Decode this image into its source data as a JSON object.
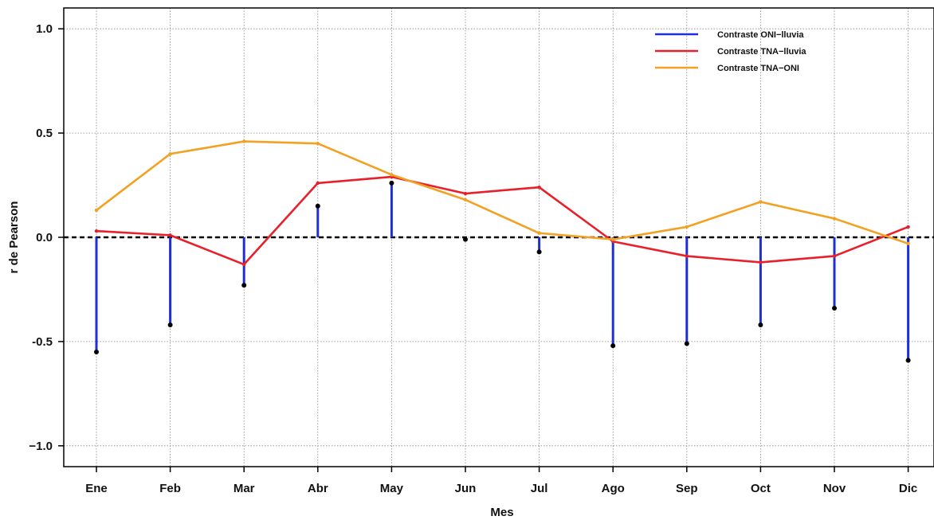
{
  "chart_data": {
    "type": "line",
    "title": "",
    "xlabel": "Mes",
    "ylabel": "r de Pearson",
    "categories": [
      "Ene",
      "Feb",
      "Mar",
      "Abr",
      "May",
      "Jun",
      "Jul",
      "Ago",
      "Sep",
      "Oct",
      "Nov",
      "Dic"
    ],
    "ylim": [
      -1.1,
      1.1
    ],
    "yticks": [
      -1.0,
      -0.5,
      0.0,
      0.5,
      1.0
    ],
    "ytick_labels": [
      "−1.0",
      "-0.5",
      "0.0",
      "0.5",
      "1.0"
    ],
    "grid": true,
    "reference_line": {
      "y": 0.0,
      "style": "dashed"
    },
    "legend_position": "top-right",
    "series": [
      {
        "name": "Contraste ONI−lluvia",
        "render": "stem",
        "color": "#1f2fd6",
        "values": [
          -0.55,
          -0.42,
          -0.23,
          0.15,
          0.26,
          -0.01,
          -0.07,
          -0.52,
          -0.51,
          -0.42,
          -0.34,
          -0.59
        ]
      },
      {
        "name": "Contraste TNA−lluvia",
        "render": "line",
        "color": "#e8202a",
        "values": [
          0.03,
          0.01,
          -0.13,
          0.26,
          0.29,
          0.21,
          0.24,
          -0.02,
          -0.09,
          -0.12,
          -0.09,
          0.05
        ]
      },
      {
        "name": "Contraste TNA−ONI",
        "render": "line",
        "color": "#f2a122",
        "values": [
          0.13,
          0.4,
          0.46,
          0.45,
          0.3,
          0.18,
          0.02,
          -0.01,
          0.05,
          0.17,
          0.09,
          -0.03
        ]
      }
    ]
  }
}
